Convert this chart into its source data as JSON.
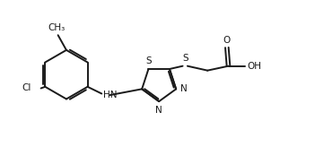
{
  "bg_color": "#ffffff",
  "line_color": "#1a1a1a",
  "line_width": 1.4,
  "font_size": 7.5,
  "figsize": [
    3.51,
    1.83
  ],
  "dpi": 100,
  "xlim": [
    0,
    10.5
  ],
  "ylim": [
    0,
    5.0
  ]
}
